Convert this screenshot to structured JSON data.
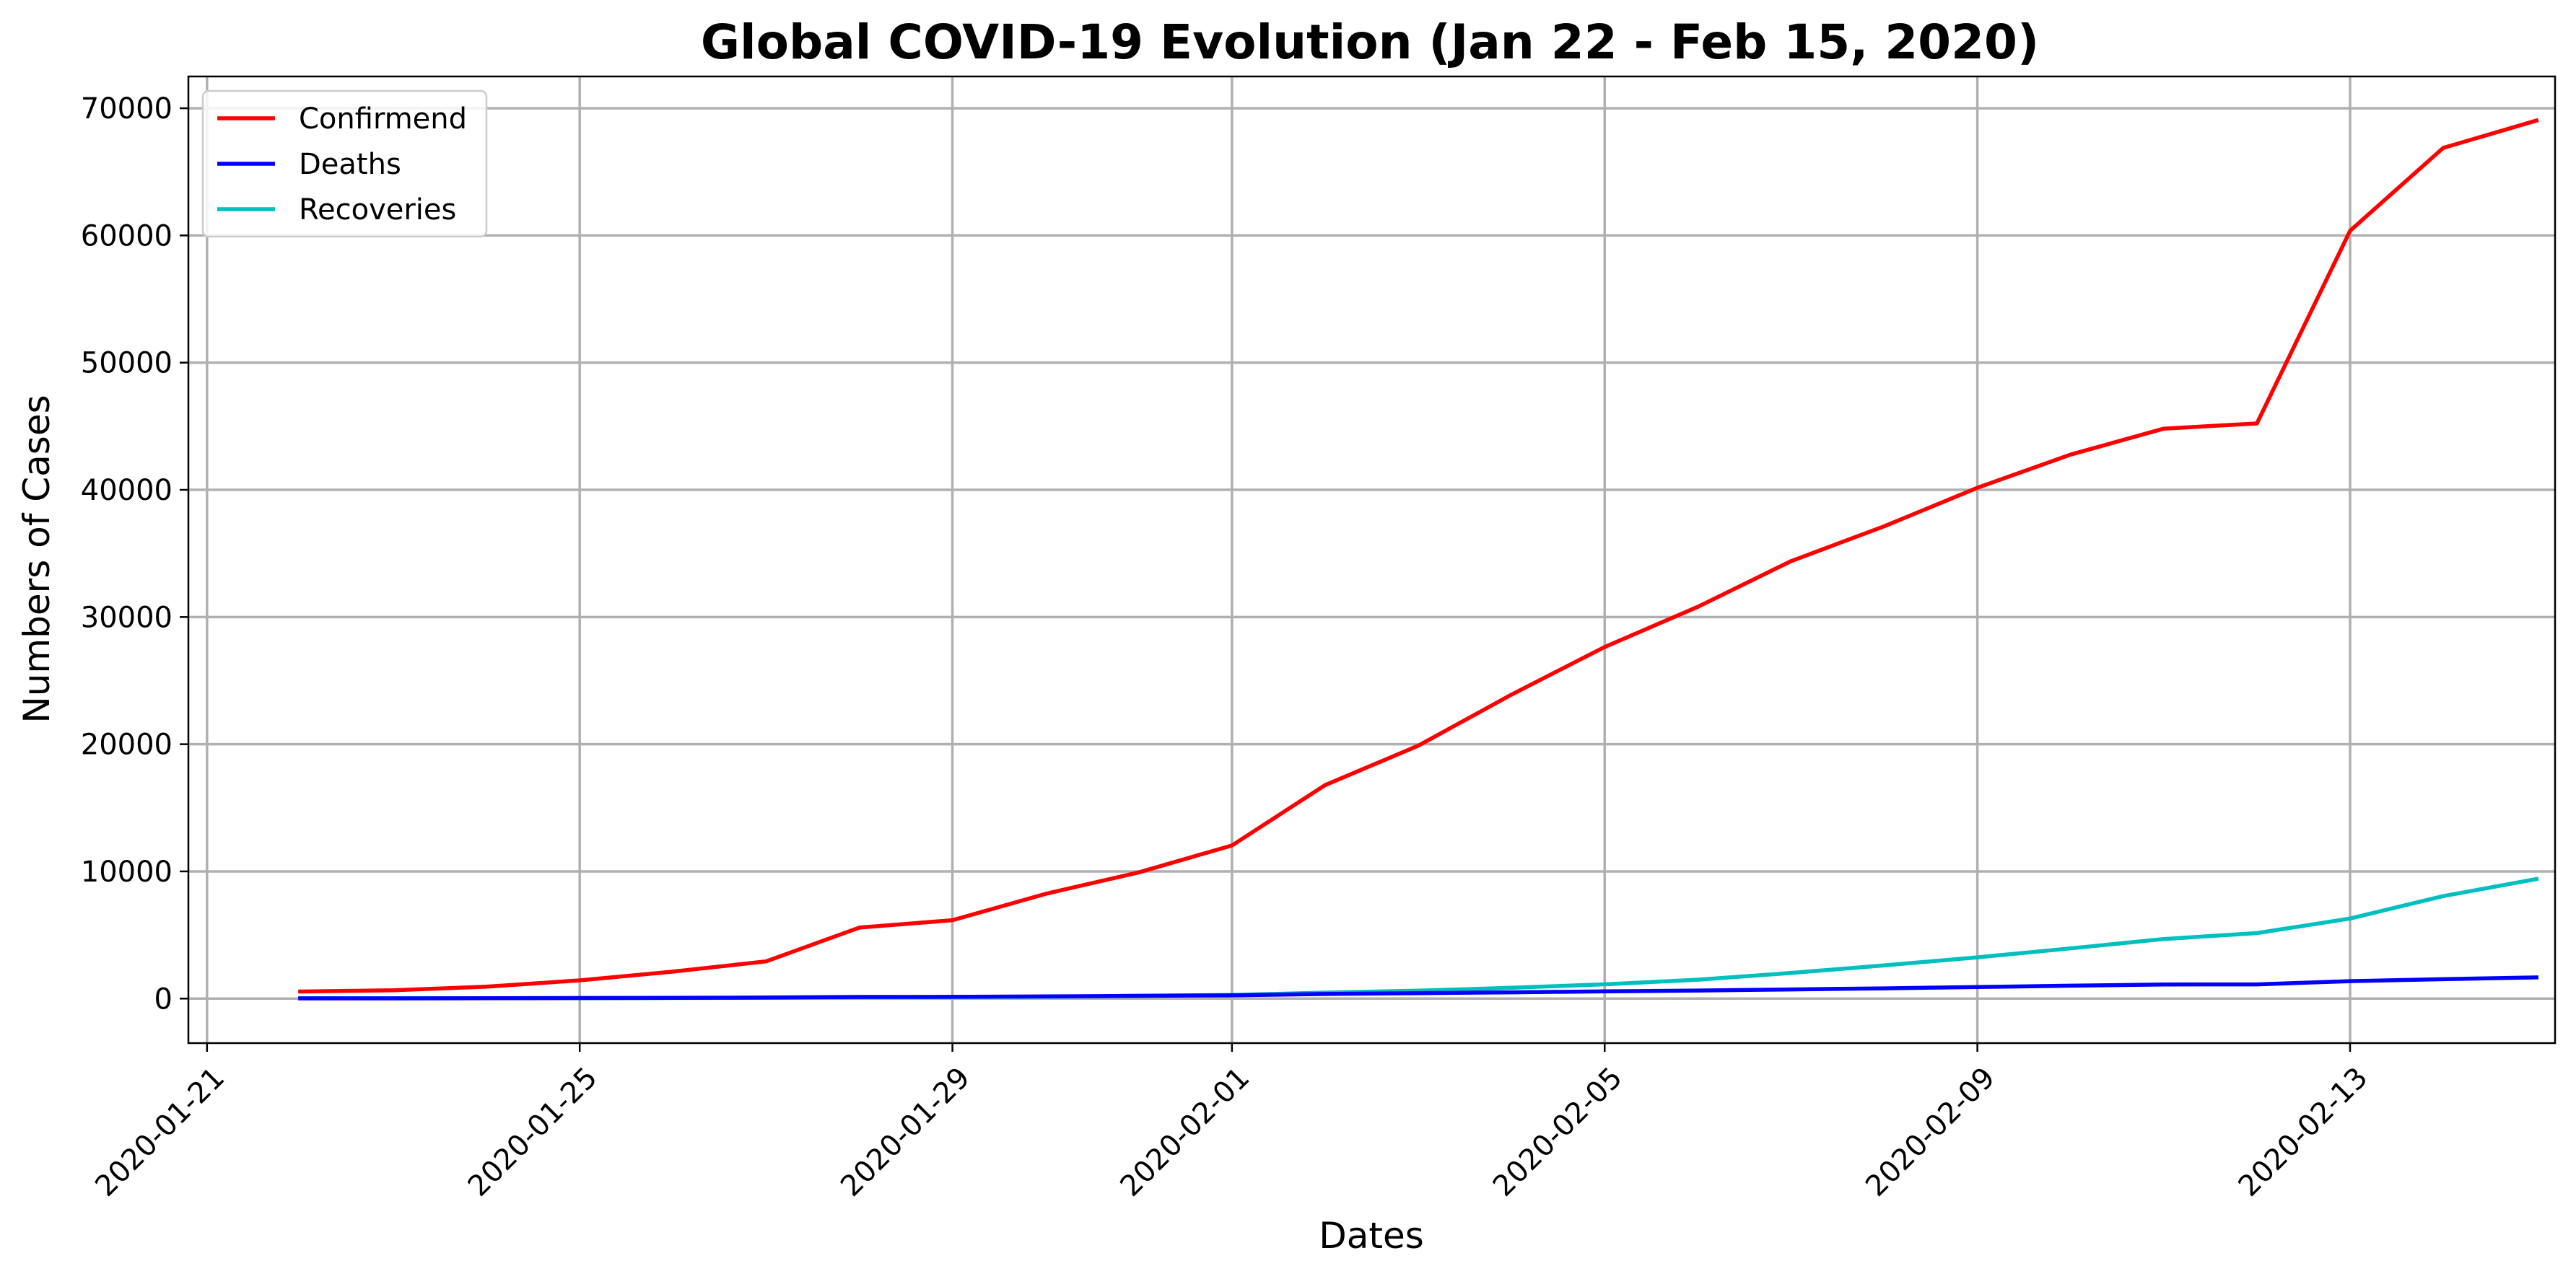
{
  "chart_data": {
    "type": "line",
    "title": "Global COVID-19 Evolution (Jan 22 - Feb 15, 2020)",
    "xlabel": "Dates",
    "ylabel": "Numbers of Cases",
    "x": [
      "2020-01-22",
      "2020-01-23",
      "2020-01-24",
      "2020-01-25",
      "2020-01-26",
      "2020-01-27",
      "2020-01-28",
      "2020-01-29",
      "2020-01-30",
      "2020-01-31",
      "2020-02-01",
      "2020-02-02",
      "2020-02-03",
      "2020-02-04",
      "2020-02-05",
      "2020-02-06",
      "2020-02-07",
      "2020-02-08",
      "2020-02-09",
      "2020-02-10",
      "2020-02-11",
      "2020-02-12",
      "2020-02-13",
      "2020-02-14",
      "2020-02-15"
    ],
    "series": [
      {
        "name": "Confirmend",
        "color": "#ff0000",
        "values": [
          555,
          654,
          941,
          1434,
          2118,
          2927,
          5578,
          6166,
          8234,
          9927,
          12038,
          16787,
          19887,
          23898,
          27643,
          30802,
          34395,
          37129,
          40160,
          42769,
          44811,
          45222,
          60370,
          66887,
          69032
        ]
      },
      {
        "name": "Deaths",
        "color": "#0000ff",
        "values": [
          17,
          18,
          26,
          42,
          56,
          82,
          131,
          133,
          171,
          213,
          259,
          362,
          426,
          492,
          564,
          634,
          719,
          806,
          906,
          1013,
          1113,
          1118,
          1371,
          1523,
          1666
        ]
      },
      {
        "name": "Recoveries",
        "color": "#00bfbf",
        "values": [
          28,
          30,
          36,
          39,
          52,
          61,
          107,
          126,
          143,
          222,
          284,
          472,
          623,
          852,
          1124,
          1487,
          2011,
          2616,
          3244,
          3946,
          4683,
          5150,
          6295,
          8058,
          9395
        ]
      }
    ],
    "x_ticks": [
      "2020-01-21",
      "2020-01-25",
      "2020-01-29",
      "2020-02-01",
      "2020-02-05",
      "2020-02-09",
      "2020-02-13"
    ],
    "y_ticks": [
      0,
      10000,
      20000,
      30000,
      40000,
      50000,
      60000,
      70000
    ],
    "xlim": [
      "2020-01-20",
      "2020-02-16"
    ],
    "ylim": [
      -3500,
      72500
    ],
    "grid": true,
    "legend_position": "upper-left"
  }
}
